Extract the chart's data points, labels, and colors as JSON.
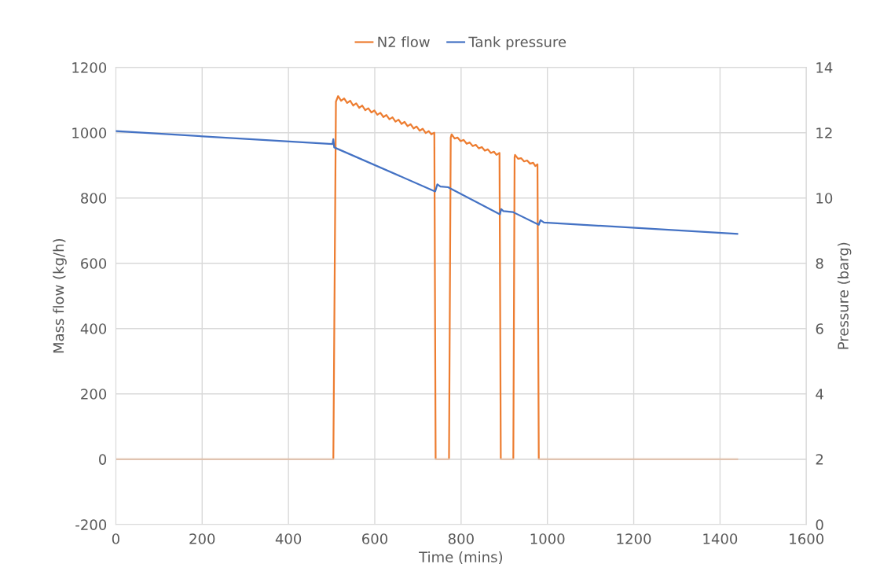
{
  "chart_data": {
    "type": "line",
    "xlabel": "Time (mins)",
    "ylabel": "Mass flow (kg/h)",
    "y2label": "Pressure (barg)",
    "xlim": [
      0,
      1600
    ],
    "xticks": [
      0,
      200,
      400,
      600,
      800,
      1000,
      1200,
      1400,
      1600
    ],
    "ylim": [
      -200,
      1200
    ],
    "yticks": [
      -200,
      0,
      200,
      400,
      600,
      800,
      1000,
      1200
    ],
    "y2lim": [
      0,
      14
    ],
    "y2ticks": [
      0,
      2,
      4,
      6,
      8,
      10,
      12,
      14
    ],
    "grid": true,
    "legend": "top",
    "marker": "none",
    "line_style": "solid",
    "series": [
      {
        "name": "N2 flow",
        "color": "#ed7d31",
        "x": [
          0,
          504,
          510,
          515,
          522,
          529,
          536,
          543,
          550,
          557,
          564,
          571,
          578,
          585,
          592,
          599,
          606,
          613,
          620,
          627,
          634,
          641,
          648,
          655,
          662,
          669,
          676,
          683,
          690,
          697,
          704,
          711,
          718,
          725,
          731,
          738,
          741,
          772,
          776,
          778,
          785,
          792,
          799,
          806,
          813,
          820,
          827,
          834,
          841,
          848,
          855,
          862,
          869,
          876,
          882,
          889,
          892,
          921,
          924,
          925,
          932,
          939,
          946,
          953,
          960,
          967,
          972,
          977,
          980,
          1440
        ],
        "values": [
          0,
          0,
          1095,
          1112,
          1098,
          1105,
          1091,
          1098,
          1083,
          1090,
          1076,
          1083,
          1069,
          1075,
          1062,
          1068,
          1055,
          1061,
          1048,
          1054,
          1041,
          1047,
          1034,
          1040,
          1027,
          1033,
          1020,
          1026,
          1013,
          1019,
          1006,
          1012,
          999,
          1005,
          995,
          1000,
          0,
          0,
          985,
          995,
          982,
          985,
          974,
          978,
          966,
          970,
          959,
          963,
          952,
          956,
          945,
          949,
          938,
          942,
          932,
          938,
          0,
          0,
          925,
          932,
          920,
          922,
          912,
          915,
          905,
          908,
          898,
          903,
          0,
          0
        ]
      },
      {
        "name": "Tank pressure",
        "color": "#4472c4",
        "axis": "y2",
        "x": [
          0,
          502,
          504,
          506,
          740,
          745,
          752,
          770,
          774,
          890,
          893,
          898,
          920,
          923,
          980,
          984,
          992,
          1440
        ],
        "values": [
          12.05,
          11.65,
          11.8,
          11.55,
          10.2,
          10.42,
          10.35,
          10.33,
          10.3,
          9.5,
          9.66,
          9.6,
          9.57,
          9.55,
          9.18,
          9.32,
          9.25,
          8.9
        ]
      }
    ]
  }
}
